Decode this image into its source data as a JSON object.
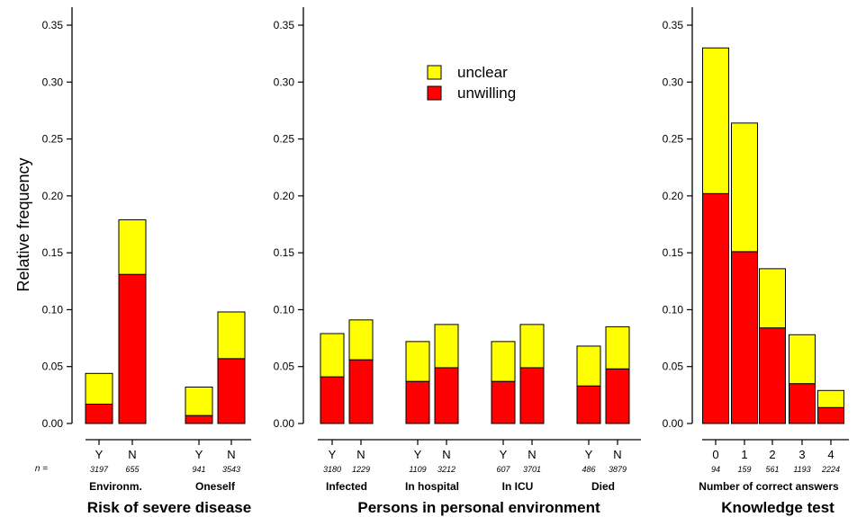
{
  "ylabel": "Relative frequency",
  "n_prefix": "n =",
  "chart_data": [
    {
      "type": "bar",
      "stacked": true,
      "title": "Risk of severe disease",
      "ylim": [
        0,
        0.35
      ],
      "yticks": [
        "0.00",
        "0.05",
        "0.10",
        "0.15",
        "0.20",
        "0.25",
        "0.30",
        "0.35"
      ],
      "groups": [
        {
          "label": "Environm.",
          "bars": [
            {
              "category": "Y",
              "n": "3197",
              "unwilling": 0.017,
              "unclear": 0.027
            },
            {
              "category": "N",
              "n": "655",
              "unwilling": 0.131,
              "unclear": 0.048
            }
          ]
        },
        {
          "label": "Oneself",
          "bars": [
            {
              "category": "Y",
              "n": "941",
              "unwilling": 0.007,
              "unclear": 0.025
            },
            {
              "category": "N",
              "n": "3543",
              "unwilling": 0.057,
              "unclear": 0.041
            }
          ]
        }
      ]
    },
    {
      "type": "bar",
      "stacked": true,
      "title": "Persons in personal environment",
      "ylim": [
        0,
        0.35
      ],
      "yticks": [
        "0.00",
        "0.05",
        "0.10",
        "0.15",
        "0.20",
        "0.25",
        "0.30",
        "0.35"
      ],
      "legend": {
        "placement": "top-center",
        "entries": [
          {
            "label": "unclear",
            "color": "#ffff00"
          },
          {
            "label": "unwilling",
            "color": "#ff0000"
          }
        ]
      },
      "groups": [
        {
          "label": "Infected",
          "bars": [
            {
              "category": "Y",
              "n": "3180",
              "unwilling": 0.041,
              "unclear": 0.038
            },
            {
              "category": "N",
              "n": "1229",
              "unwilling": 0.056,
              "unclear": 0.035
            }
          ]
        },
        {
          "label": "In hospital",
          "bars": [
            {
              "category": "Y",
              "n": "1109",
              "unwilling": 0.037,
              "unclear": 0.035
            },
            {
              "category": "N",
              "n": "3212",
              "unwilling": 0.049,
              "unclear": 0.038
            }
          ]
        },
        {
          "label": "In ICU",
          "bars": [
            {
              "category": "Y",
              "n": "607",
              "unwilling": 0.037,
              "unclear": 0.035
            },
            {
              "category": "N",
              "n": "3701",
              "unwilling": 0.049,
              "unclear": 0.038
            }
          ]
        },
        {
          "label": "Died",
          "bars": [
            {
              "category": "Y",
              "n": "486",
              "unwilling": 0.033,
              "unclear": 0.035
            },
            {
              "category": "N",
              "n": "3879",
              "unwilling": 0.048,
              "unclear": 0.037
            }
          ]
        }
      ]
    },
    {
      "type": "bar",
      "stacked": true,
      "title": "Knowledge test",
      "xlabel": "Number of correct answers",
      "ylim": [
        0,
        0.35
      ],
      "yticks": [
        "0.00",
        "0.05",
        "0.10",
        "0.15",
        "0.20",
        "0.25",
        "0.30",
        "0.35"
      ],
      "groups": [
        {
          "label": "",
          "bars": [
            {
              "category": "0",
              "n": "94",
              "unwilling": 0.202,
              "unclear": 0.128
            },
            {
              "category": "1",
              "n": "159",
              "unwilling": 0.151,
              "unclear": 0.113
            },
            {
              "category": "2",
              "n": "561",
              "unwilling": 0.084,
              "unclear": 0.052
            },
            {
              "category": "3",
              "n": "1193",
              "unwilling": 0.035,
              "unclear": 0.043
            },
            {
              "category": "4",
              "n": "2224",
              "unwilling": 0.014,
              "unclear": 0.015
            }
          ]
        }
      ]
    }
  ],
  "colors": {
    "unwilling": "#ff0000",
    "unclear": "#ffff00",
    "stroke": "#000000"
  }
}
